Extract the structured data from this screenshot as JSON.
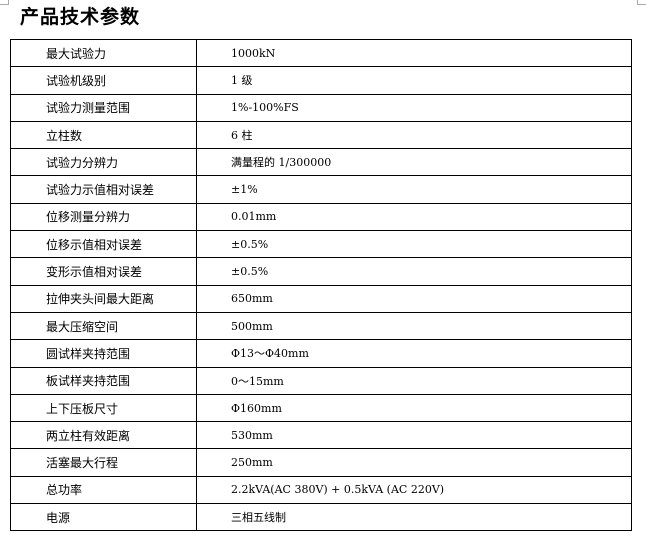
{
  "title": "产品技术参数",
  "rows": [
    {
      "label": "最大试验力",
      "value": "1000kN"
    },
    {
      "label": "试验机级别",
      "value": "1 级"
    },
    {
      "label": "试验力测量范围",
      "value": "1%-100%FS"
    },
    {
      "label": "立柱数",
      "value": "6 柱"
    },
    {
      "label": "试验力分辨力",
      "value": "满量程的 1/300000"
    },
    {
      "label": "试验力示值相对误差",
      "value": "±1%"
    },
    {
      "label": "位移测量分辨力",
      "value": "0.01mm"
    },
    {
      "label": "位移示值相对误差",
      "value": "±0.5%"
    },
    {
      "label": "变形示值相对误差",
      "value": "±0.5%"
    },
    {
      "label": "拉伸夹头间最大距离",
      "value": "650mm"
    },
    {
      "label": "最大压缩空间",
      "value": "500mm"
    },
    {
      "label": "圆试样夹持范围",
      "value": "Φ13～Φ40mm"
    },
    {
      "label": "板试样夹持范围",
      "value": "0～15mm"
    },
    {
      "label": "上下压板尺寸",
      "value": "Φ160mm"
    },
    {
      "label": "两立柱有效距离",
      "value": "530mm"
    },
    {
      "label": "活塞最大行程",
      "value": "250mm"
    },
    {
      "label": "总功率",
      "value": "2.2kVA(AC 380V) + 0.5kVA (AC 220V)"
    },
    {
      "label": "电源",
      "value": "三相五线制"
    }
  ]
}
